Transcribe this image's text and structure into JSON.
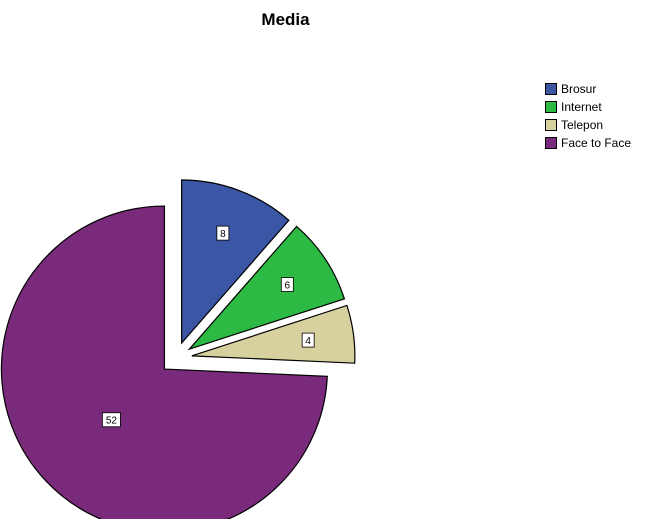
{
  "chart_data": {
    "type": "pie",
    "title": "Media",
    "legend_position": "top-right",
    "exploded": true,
    "slices": [
      {
        "label": "Brosur",
        "value": 8,
        "color": "#3c56a6"
      },
      {
        "label": "Internet",
        "value": 6,
        "color": "#2cba44"
      },
      {
        "label": "Telepon",
        "value": 4,
        "color": "#d6d19f"
      },
      {
        "label": "Face to Face",
        "value": 52,
        "color": "#7a2a7a"
      }
    ]
  }
}
